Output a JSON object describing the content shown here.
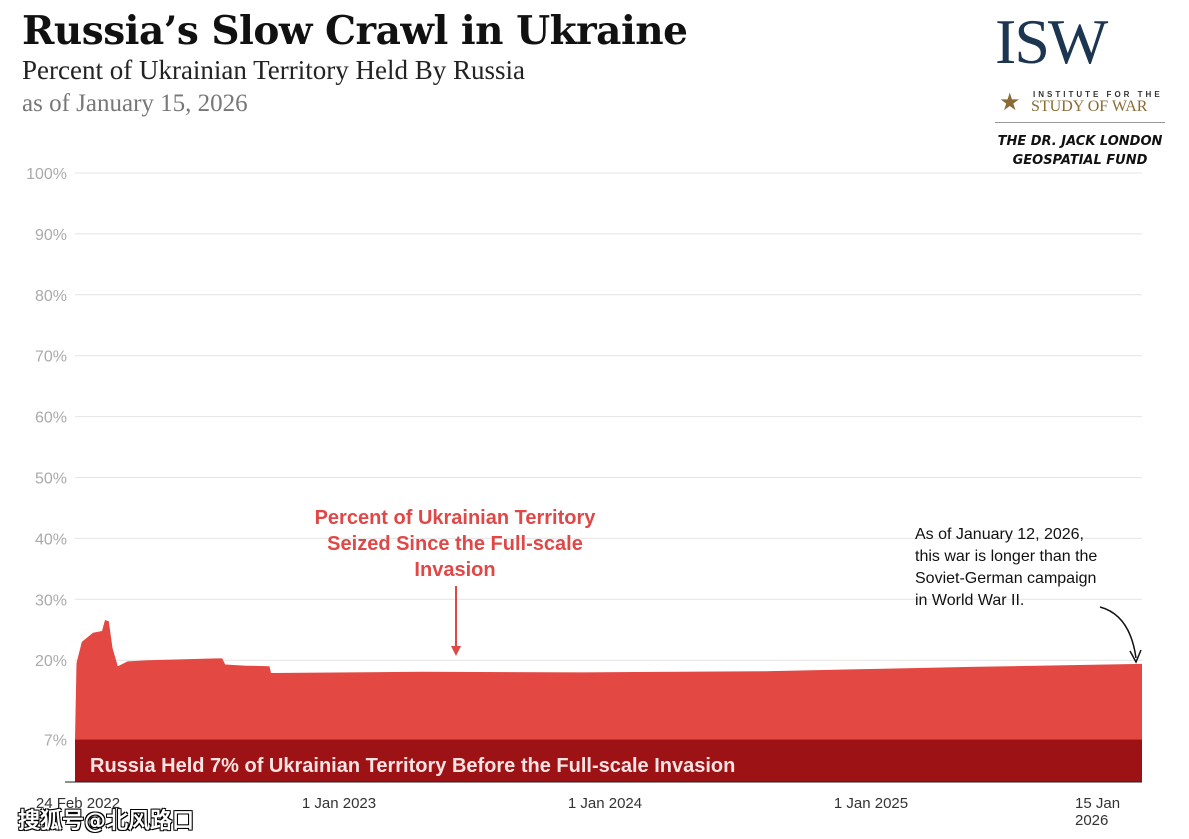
{
  "header": {
    "title": "Russia’s Slow Crawl in Ukraine",
    "subtitle": "Percent of Ukrainian Territory Held By Russia",
    "asof": "as of January 15, 2026"
  },
  "logo": {
    "mark": "ISW",
    "line1": "INSTITUTE FOR THE",
    "line2": "STUDY OF WAR",
    "fund1": "THE DR. JACK LONDON",
    "fund2": "GEOSPATIAL FUND"
  },
  "chart_data": {
    "type": "area",
    "title": "Russia’s Slow Crawl in Ukraine",
    "ylabel": "Percent of Ukrainian Territory Held By Russia",
    "ylim": [
      0,
      100
    ],
    "yticks": [
      "100%",
      "90%",
      "80%",
      "70%",
      "60%",
      "50%",
      "40%",
      "30%",
      "20%",
      "7%"
    ],
    "ytick_values": [
      100,
      90,
      80,
      70,
      60,
      50,
      40,
      30,
      20,
      7
    ],
    "xlim": [
      "2022-02-24",
      "2026-01-15"
    ],
    "xticks": [
      "24 Feb 2022",
      "1 Jan 2023",
      "1 Jan 2024",
      "1 Jan 2025",
      "15 Jan 2026"
    ],
    "baseline": 7,
    "series": [
      {
        "name": "Percent of Ukrainian Territory Held By Russia",
        "points": [
          [
            "2022-02-24",
            7
          ],
          [
            "2022-02-26",
            19.5
          ],
          [
            "2022-03-05",
            23
          ],
          [
            "2022-03-20",
            24.5
          ],
          [
            "2022-04-01",
            24.8
          ],
          [
            "2022-04-05",
            26.6
          ],
          [
            "2022-04-10",
            26.4
          ],
          [
            "2022-04-15",
            22
          ],
          [
            "2022-04-22",
            19
          ],
          [
            "2022-05-05",
            19.8
          ],
          [
            "2022-06-01",
            20
          ],
          [
            "2022-09-01",
            20.3
          ],
          [
            "2022-09-08",
            20.3
          ],
          [
            "2022-09-12",
            19.3
          ],
          [
            "2022-10-10",
            19.1
          ],
          [
            "2022-11-10",
            19
          ],
          [
            "2022-11-12",
            17.9
          ],
          [
            "2023-06-01",
            18.1
          ],
          [
            "2024-01-01",
            18.0
          ],
          [
            "2024-09-01",
            18.2
          ],
          [
            "2025-01-01",
            18.5
          ],
          [
            "2025-06-01",
            18.9
          ],
          [
            "2026-01-15",
            19.4
          ]
        ]
      }
    ],
    "colors": {
      "area": "#e34843",
      "band": "#9c1215",
      "annotation": "#e04848"
    },
    "annotations": {
      "seized": "Percent of Ukrainian Territory Seized Since the Full-scale Invasion",
      "ww2": [
        "As of January 12, 2026,",
        "this war is longer than the",
        "Soviet-German campaign",
        "in World War II."
      ],
      "band": "Russia Held 7% of Ukrainian Territory Before the Full-scale Invasion"
    }
  },
  "watermark": "搜狐号@北风路口"
}
